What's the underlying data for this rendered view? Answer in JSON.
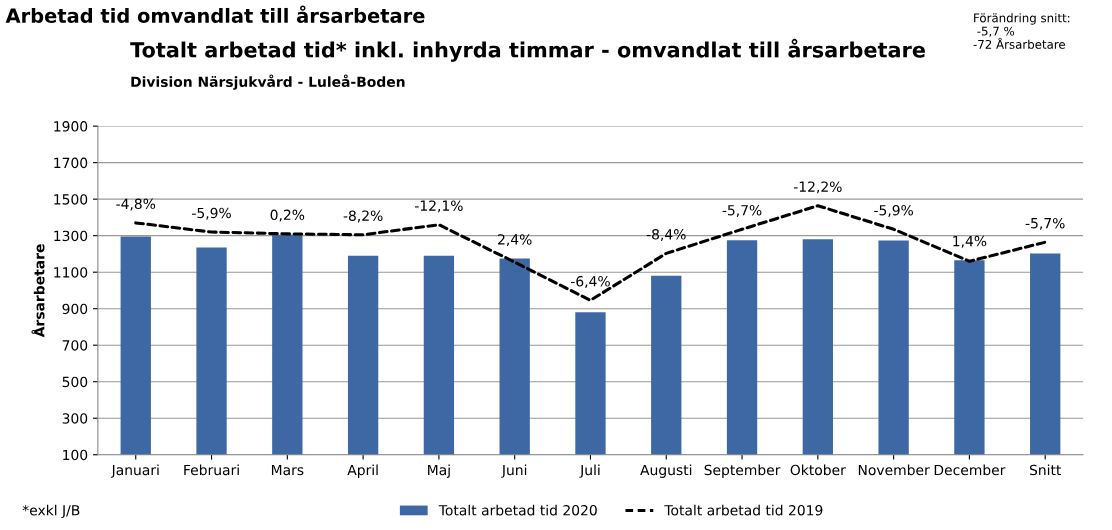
{
  "chart_data": {
    "type": "bar",
    "title": "Totalt arbetad tid* inkl. inhyrda timmar - omvandlat till årsarbetare",
    "subtitle": "Division Närsjukvård - Luleå-Boden",
    "ylabel": "Årsarbetare",
    "categories": [
      "Januari",
      "Februari",
      "Mars",
      "April",
      "Maj",
      "Juni",
      "Juli",
      "Augusti",
      "September",
      "Oktober",
      "November",
      "December",
      "Snitt"
    ],
    "series": [
      {
        "name": "Totalt arbetad tid 2020",
        "color": "#3d68a3",
        "values": [
          1295,
          1235,
          1305,
          1190,
          1190,
          1175,
          880,
          1080,
          1275,
          1280,
          1273,
          1166,
          1203
        ]
      },
      {
        "name": "Totalt arbetad tid 2019",
        "type": "line",
        "color": "#000000",
        "line_style": "dashed",
        "values": [
          1370,
          1320,
          1310,
          1305,
          1360,
          1155,
          946,
          1203,
          1335,
          1464,
          1335,
          1160,
          1264
        ]
      }
    ],
    "ylim": [
      100,
      1900
    ],
    "yticks": [
      100,
      300,
      500,
      700,
      900,
      1100,
      1300,
      1500,
      1700,
      1900
    ],
    "grid": "y",
    "legend": "bottom",
    "annotations": [
      "Arbetad tid omvandlat till årsarbetare",
      "Förändring snitt:\n -5,7 %\n-72 Årsarbetare",
      "*exkl J/B",
      "-4,8%",
      "-5,9%",
      "0,2%",
      "-8,2%",
      "-12,1%",
      "2,4%",
      "-6,4%",
      "-8,4%",
      "-5,7%",
      "-12,2%",
      "-5,9%",
      "1,4%",
      "-5,7%"
    ]
  }
}
